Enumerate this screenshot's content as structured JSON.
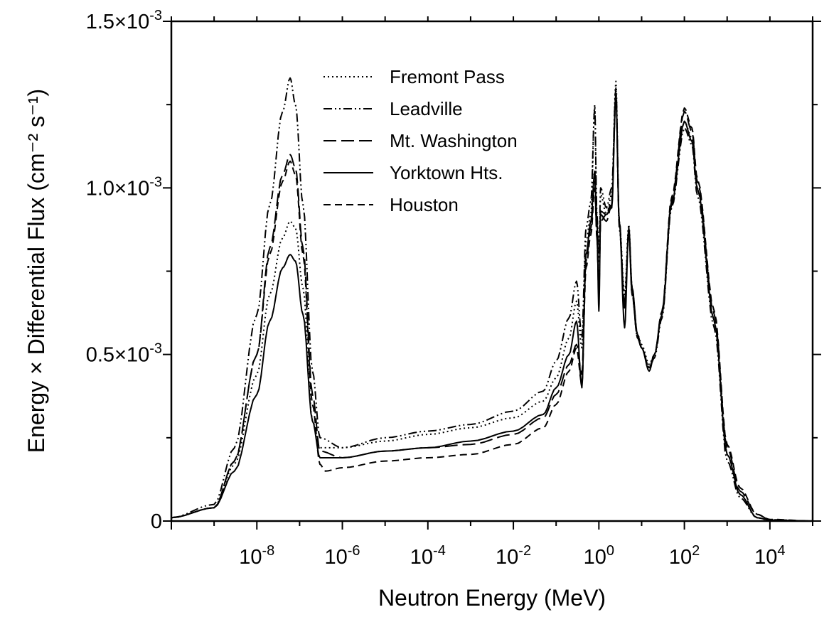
{
  "chart_data": {
    "type": "line",
    "xlabel": "Neutron Energy  (MeV)",
    "ylabel": "Energy × Differential Flux  (cm⁻² s⁻¹)",
    "x_scale": "log",
    "xlim": [
      1e-10,
      100000.0
    ],
    "ylim": [
      0,
      0.0015
    ],
    "x_ticks": [
      {
        "value": 1e-08,
        "base": "10",
        "exp": "-8"
      },
      {
        "value": 1e-06,
        "base": "10",
        "exp": "-6"
      },
      {
        "value": 0.0001,
        "base": "10",
        "exp": "-4"
      },
      {
        "value": 0.01,
        "base": "10",
        "exp": "-2"
      },
      {
        "value": 1,
        "base": "10",
        "exp": "0"
      },
      {
        "value": 100,
        "base": "10",
        "exp": "2"
      },
      {
        "value": 10000,
        "base": "10",
        "exp": "4"
      }
    ],
    "y_ticks": [
      {
        "value": 0,
        "label": "0",
        "exp": ""
      },
      {
        "value": 0.0005,
        "label": "0.5×10",
        "exp": "-3"
      },
      {
        "value": 0.001,
        "label": "1.0×10",
        "exp": "-3"
      },
      {
        "value": 0.0015,
        "label": "1.5×10",
        "exp": "-3"
      }
    ],
    "legend_position": "top-center",
    "series": [
      {
        "name": "Fremont Pass",
        "dash": "2,4",
        "points": [
          [
            1e-10,
            1e-05
          ],
          [
            1e-09,
            4e-05
          ],
          [
            3e-09,
            0.00017
          ],
          [
            1e-08,
            0.00044
          ],
          [
            2e-08,
            0.00068
          ],
          [
            4e-08,
            0.00085
          ],
          [
            6e-08,
            0.0009
          ],
          [
            8e-08,
            0.00088
          ],
          [
            1.2e-07,
            0.0007
          ],
          [
            2e-07,
            0.0003
          ],
          [
            3e-07,
            0.00022
          ],
          [
            1e-06,
            0.00022
          ],
          [
            1e-05,
            0.00024
          ],
          [
            0.0001,
            0.00026
          ],
          [
            0.001,
            0.00028
          ],
          [
            0.01,
            0.00031
          ],
          [
            0.05,
            0.00036
          ],
          [
            0.1,
            0.00043
          ],
          [
            0.2,
            0.00055
          ],
          [
            0.3,
            0.00066
          ],
          [
            0.4,
            0.00052
          ],
          [
            0.5,
            0.00084
          ],
          [
            0.65,
            0.00092
          ],
          [
            0.8,
            0.00125
          ],
          [
            0.9,
            0.0009
          ],
          [
            1.0,
            0.00078
          ],
          [
            1.1,
            0.00098
          ],
          [
            1.5,
            0.00092
          ],
          [
            2.0,
            0.00098
          ],
          [
            2.5,
            0.00132
          ],
          [
            3.0,
            0.0009
          ],
          [
            4.0,
            0.00068
          ],
          [
            5.0,
            0.00089
          ],
          [
            6.0,
            0.0007
          ],
          [
            8.0,
            0.00056
          ],
          [
            10,
            0.00053
          ],
          [
            15,
            0.00047
          ],
          [
            20,
            0.0005
          ],
          [
            30,
            0.00062
          ],
          [
            50,
            0.00095
          ],
          [
            100,
            0.0012
          ],
          [
            150,
            0.00115
          ],
          [
            200,
            0.001
          ],
          [
            500,
            0.0006
          ],
          [
            1000,
            0.0002
          ],
          [
            2000,
            8e-05
          ],
          [
            5000,
            1e-05
          ],
          [
            10000,
            3e-06
          ],
          [
            100000.0,
            0.0
          ]
        ]
      },
      {
        "name": "Leadville",
        "dash": "12,4,2,4,2,4",
        "points": [
          [
            1e-10,
            1e-05
          ],
          [
            1e-09,
            5e-05
          ],
          [
            3e-09,
            0.00022
          ],
          [
            1e-08,
            0.00062
          ],
          [
            2e-08,
            0.00095
          ],
          [
            4e-08,
            0.00123
          ],
          [
            6e-08,
            0.00133
          ],
          [
            8e-08,
            0.00125
          ],
          [
            1.2e-07,
            0.00095
          ],
          [
            2e-07,
            0.00045
          ],
          [
            3e-07,
            0.00025
          ],
          [
            1e-06,
            0.00022
          ],
          [
            1e-05,
            0.00025
          ],
          [
            0.0001,
            0.00027
          ],
          [
            0.001,
            0.00029
          ],
          [
            0.01,
            0.00033
          ],
          [
            0.05,
            0.00039
          ],
          [
            0.1,
            0.00048
          ],
          [
            0.2,
            0.00061
          ],
          [
            0.3,
            0.00072
          ],
          [
            0.4,
            0.00055
          ],
          [
            0.5,
            0.00088
          ],
          [
            0.65,
            0.00096
          ],
          [
            0.8,
            0.00124
          ],
          [
            0.9,
            0.00092
          ],
          [
            1.0,
            0.0008
          ],
          [
            1.1,
            0.001
          ],
          [
            1.5,
            0.00094
          ],
          [
            2.0,
            0.001
          ],
          [
            2.5,
            0.0013
          ],
          [
            3.0,
            0.00088
          ],
          [
            4.0,
            0.00066
          ],
          [
            5.0,
            0.00087
          ],
          [
            6.0,
            0.00068
          ],
          [
            8.0,
            0.00055
          ],
          [
            10,
            0.00052
          ],
          [
            15,
            0.00046
          ],
          [
            20,
            0.00049
          ],
          [
            30,
            0.00061
          ],
          [
            50,
            0.00094
          ],
          [
            100,
            0.00118
          ],
          [
            150,
            0.00113
          ],
          [
            200,
            0.00098
          ],
          [
            500,
            0.00058
          ],
          [
            1000,
            0.00018
          ],
          [
            2000,
            7e-05
          ],
          [
            5000,
            1e-05
          ],
          [
            10000,
            2e-06
          ],
          [
            100000.0,
            0.0
          ]
        ]
      },
      {
        "name": "Mt. Washington",
        "dash": "18,7",
        "points": [
          [
            1e-10,
            1e-05
          ],
          [
            1e-09,
            4e-05
          ],
          [
            3e-09,
            0.00018
          ],
          [
            1e-08,
            0.0005
          ],
          [
            2e-08,
            0.00082
          ],
          [
            4e-08,
            0.00104
          ],
          [
            6e-08,
            0.0011
          ],
          [
            8e-08,
            0.00106
          ],
          [
            1.2e-07,
            0.00082
          ],
          [
            2e-07,
            0.00038
          ],
          [
            3e-07,
            0.00021
          ],
          [
            1e-06,
            0.00019
          ],
          [
            1e-05,
            0.00021
          ],
          [
            0.0001,
            0.00022
          ],
          [
            0.001,
            0.00023
          ],
          [
            0.01,
            0.00026
          ],
          [
            0.05,
            0.00031
          ],
          [
            0.1,
            0.00038
          ],
          [
            0.2,
            0.00047
          ],
          [
            0.3,
            0.00053
          ],
          [
            0.4,
            0.00044
          ],
          [
            0.5,
            0.00078
          ],
          [
            0.65,
            0.00088
          ],
          [
            0.8,
            0.00102
          ],
          [
            0.9,
            0.00085
          ],
          [
            1.0,
            0.00068
          ],
          [
            1.1,
            0.00092
          ],
          [
            1.5,
            0.0009
          ],
          [
            2.0,
            0.00095
          ],
          [
            2.5,
            0.00128
          ],
          [
            3.0,
            0.0009
          ],
          [
            4.0,
            0.00064
          ],
          [
            5.0,
            0.00087
          ],
          [
            6.0,
            0.00068
          ],
          [
            8.0,
            0.00055
          ],
          [
            10,
            0.00052
          ],
          [
            15,
            0.00046
          ],
          [
            20,
            0.0005
          ],
          [
            30,
            0.00063
          ],
          [
            50,
            0.00096
          ],
          [
            100,
            0.00123
          ],
          [
            150,
            0.00117
          ],
          [
            200,
            0.00102
          ],
          [
            500,
            0.00062
          ],
          [
            1000,
            0.00022
          ],
          [
            2000,
            9e-05
          ],
          [
            5000,
            2e-05
          ],
          [
            10000,
            4e-06
          ],
          [
            100000.0,
            0.0
          ]
        ]
      },
      {
        "name": "Yorktown Hts.",
        "dash": "",
        "points": [
          [
            1e-10,
            1e-05
          ],
          [
            1e-09,
            4e-05
          ],
          [
            3e-09,
            0.00015
          ],
          [
            1e-08,
            0.00038
          ],
          [
            2e-08,
            0.0006
          ],
          [
            4e-08,
            0.00076
          ],
          [
            6e-08,
            0.0008
          ],
          [
            8e-08,
            0.00078
          ],
          [
            1.2e-07,
            0.00062
          ],
          [
            2e-07,
            0.0003
          ],
          [
            3e-07,
            0.00019
          ],
          [
            1e-06,
            0.00019
          ],
          [
            1e-05,
            0.00021
          ],
          [
            0.0001,
            0.00022
          ],
          [
            0.001,
            0.00024
          ],
          [
            0.01,
            0.00027
          ],
          [
            0.05,
            0.00032
          ],
          [
            0.1,
            0.0004
          ],
          [
            0.2,
            0.0005
          ],
          [
            0.3,
            0.0006
          ],
          [
            0.4,
            0.0004
          ],
          [
            0.5,
            0.0008
          ],
          [
            0.65,
            0.0009
          ],
          [
            0.8,
            0.00105
          ],
          [
            0.9,
            0.0009
          ],
          [
            1.0,
            0.00063
          ],
          [
            1.1,
            0.00093
          ],
          [
            1.5,
            0.00092
          ],
          [
            2.0,
            0.00094
          ],
          [
            2.5,
            0.00128
          ],
          [
            3.0,
            0.0009
          ],
          [
            4.0,
            0.00058
          ],
          [
            5.0,
            0.00088
          ],
          [
            6.0,
            0.0007
          ],
          [
            8.0,
            0.00056
          ],
          [
            10,
            0.00052
          ],
          [
            15,
            0.00045
          ],
          [
            20,
            0.0005
          ],
          [
            30,
            0.00062
          ],
          [
            50,
            0.00095
          ],
          [
            100,
            0.0012
          ],
          [
            150,
            0.00114
          ],
          [
            200,
            0.001
          ],
          [
            500,
            0.0006
          ],
          [
            1000,
            0.0002
          ],
          [
            2000,
            8e-05
          ],
          [
            5000,
            1e-05
          ],
          [
            10000,
            3e-06
          ],
          [
            100000.0,
            0.0
          ]
        ]
      },
      {
        "name": "Houston",
        "dash": "10,6",
        "points": [
          [
            1e-10,
            1e-05
          ],
          [
            1e-09,
            4e-05
          ],
          [
            3e-09,
            0.00018
          ],
          [
            1e-08,
            0.0005
          ],
          [
            2e-08,
            0.0008
          ],
          [
            4e-08,
            0.00102
          ],
          [
            6e-08,
            0.00108
          ],
          [
            8e-08,
            0.00104
          ],
          [
            1.2e-07,
            0.0008
          ],
          [
            2e-07,
            0.00035
          ],
          [
            3e-07,
            0.00017
          ],
          [
            4e-07,
            0.00015
          ],
          [
            1e-06,
            0.00016
          ],
          [
            1e-05,
            0.00018
          ],
          [
            0.0001,
            0.00019
          ],
          [
            0.001,
            0.0002
          ],
          [
            0.01,
            0.00023
          ],
          [
            0.05,
            0.00028
          ],
          [
            0.1,
            0.00035
          ],
          [
            0.2,
            0.00045
          ],
          [
            0.3,
            0.00052
          ],
          [
            0.4,
            0.00041
          ],
          [
            0.5,
            0.00076
          ],
          [
            0.65,
            0.00086
          ],
          [
            0.8,
            0.001
          ],
          [
            0.9,
            0.00085
          ],
          [
            1.0,
            0.0007
          ],
          [
            1.1,
            0.0009
          ],
          [
            1.5,
            0.00092
          ],
          [
            2.0,
            0.00096
          ],
          [
            2.5,
            0.00128
          ],
          [
            3.0,
            0.0009
          ],
          [
            4.0,
            0.00064
          ],
          [
            5.0,
            0.00087
          ],
          [
            6.0,
            0.00068
          ],
          [
            8.0,
            0.00055
          ],
          [
            10,
            0.00052
          ],
          [
            15,
            0.00046
          ],
          [
            20,
            0.0005
          ],
          [
            30,
            0.00063
          ],
          [
            50,
            0.00097
          ],
          [
            100,
            0.00124
          ],
          [
            150,
            0.00118
          ],
          [
            200,
            0.00103
          ],
          [
            500,
            0.00063
          ],
          [
            1000,
            0.00023
          ],
          [
            2000,
            0.0001
          ],
          [
            5000,
            2e-05
          ],
          [
            10000,
            5e-06
          ],
          [
            100000.0,
            0.0
          ]
        ]
      }
    ]
  }
}
